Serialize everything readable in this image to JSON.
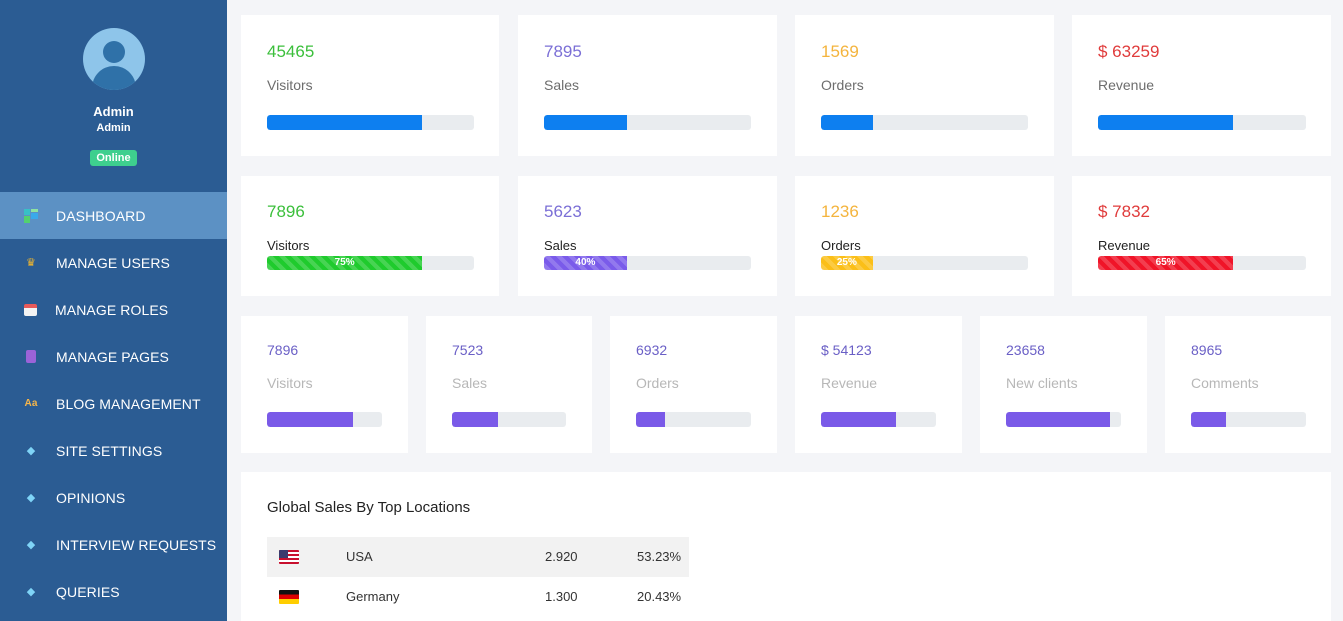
{
  "sidebar": {
    "profile": {
      "name": "Admin",
      "role": "Admin",
      "status": "Online"
    },
    "items": [
      {
        "label": "DASHBOARD",
        "icon": "dashboard-icon",
        "active": true
      },
      {
        "label": "MANAGE USERS",
        "icon": "crown-icon"
      },
      {
        "label": "MANAGE ROLES",
        "icon": "calendar-icon"
      },
      {
        "label": "MANAGE PAGES",
        "icon": "page-icon"
      },
      {
        "label": "BLOG MANAGEMENT",
        "icon": "font-icon"
      },
      {
        "label": "SITE SETTINGS",
        "icon": "gem-icon"
      },
      {
        "label": "OPINIONS",
        "icon": "gem-icon"
      },
      {
        "label": "INTERVIEW REQUESTS",
        "icon": "gem-icon"
      },
      {
        "label": "QUERIES",
        "icon": "gem-icon"
      }
    ]
  },
  "row1": [
    {
      "value": "45465",
      "label": "Visitors",
      "progress": 75,
      "color": "#3bbf3b"
    },
    {
      "value": "7895",
      "label": "Sales",
      "progress": 40,
      "color": "#7b6fd6"
    },
    {
      "value": "1569",
      "label": "Orders",
      "progress": 25,
      "color": "#f4b43d"
    },
    {
      "value": "$ 63259",
      "label": "Revenue",
      "progress": 65,
      "color": "#e03b3b"
    }
  ],
  "row2": [
    {
      "value": "7896",
      "label": "Visitors",
      "progress": 75,
      "progress_label": "75%",
      "color": "#3bbf3b",
      "bar": "#1fcb2d"
    },
    {
      "value": "5623",
      "label": "Sales",
      "progress": 40,
      "progress_label": "40%",
      "color": "#7b6fd6",
      "bar": "#7a5bea"
    },
    {
      "value": "1236",
      "label": "Orders",
      "progress": 25,
      "progress_label": "25%",
      "color": "#f4b43d",
      "bar": "#fbbf18"
    },
    {
      "value": "$ 7832",
      "label": "Revenue",
      "progress": 65,
      "progress_label": "65%",
      "color": "#e03b3b",
      "bar": "#f01428"
    }
  ],
  "row3": [
    {
      "value": "7896",
      "label": "Visitors",
      "progress": 75
    },
    {
      "value": "7523",
      "label": "Sales",
      "progress": 40
    },
    {
      "value": "6932",
      "label": "Orders",
      "progress": 25
    },
    {
      "value": "$ 54123",
      "label": "Revenue",
      "progress": 65
    },
    {
      "value": "23658",
      "label": "New clients",
      "progress": 90
    },
    {
      "value": "8965",
      "label": "Comments",
      "progress": 30
    }
  ],
  "colors": {
    "primary_bar": "#0d7ff0",
    "purple": "#7a5ae8",
    "muted_num": "#6a5fc6",
    "muted_label": "#b7b7b7"
  },
  "locations": {
    "title": "Global Sales By Top Locations",
    "rows": [
      {
        "country": "USA",
        "flag": "us-flag-icon",
        "value": "2.920",
        "percent": "53.23%"
      },
      {
        "country": "Germany",
        "flag": "germany-flag-icon",
        "value": "1.300",
        "percent": "20.43%"
      }
    ]
  }
}
